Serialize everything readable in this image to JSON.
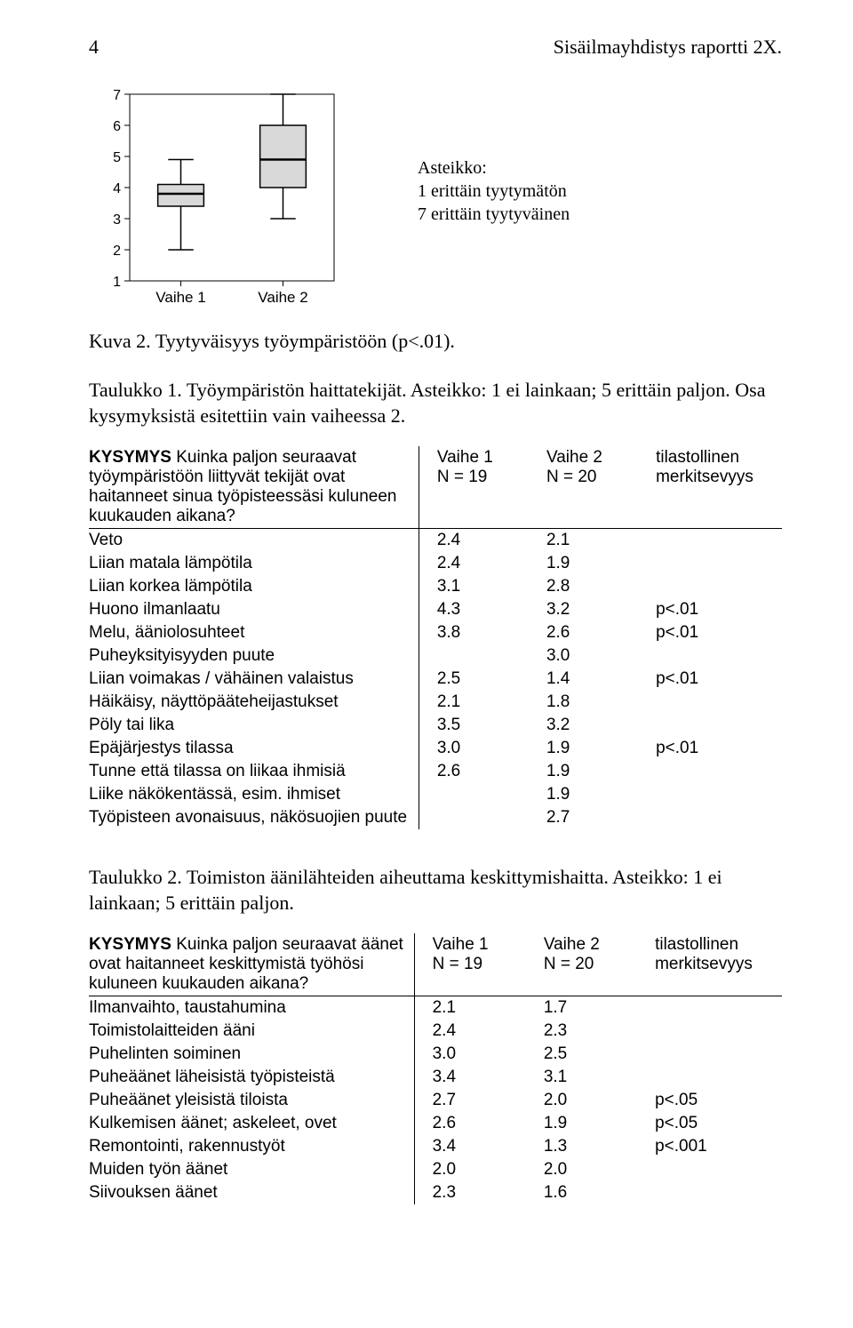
{
  "header": {
    "page_number": "4",
    "report_title": "Sisäilmayhdistys raportti 2X."
  },
  "boxplot": {
    "axis_ticks": [
      "1",
      "2",
      "3",
      "4",
      "5",
      "6",
      "7"
    ],
    "categories": [
      "Vaihe 1",
      "Vaihe 2"
    ],
    "legend_title": "Asteikko:",
    "legend_line1": "1 erittäin tyytymätön",
    "legend_line2": "7 erittäin tyytyväinen",
    "box_fill": "#d9d9d9",
    "box_stroke": "#000000",
    "line_stroke": "#000000",
    "background": "#ffffff",
    "ylim": [
      1,
      7
    ],
    "boxes": [
      {
        "whisker_low": 2,
        "q1": 3.4,
        "median": 3.8,
        "q3": 4.1,
        "whisker_high": 4.9
      },
      {
        "whisker_low": 3,
        "q1": 4.0,
        "median": 4.9,
        "q3": 6.0,
        "whisker_high": 7
      }
    ]
  },
  "fig_caption": "Kuva 2. Tyytyväisyys työympäristöön (p<.01).",
  "table1": {
    "intro": "Taulukko 1. Työympäristön haittatekijät. Asteikko: 1 ei lainkaan; 5 erittäin paljon. Osa kysymyksistä esitettiin vain vaiheessa 2.",
    "question_lead": "KYSYMYS",
    "question_text": " Kuinka paljon seuraavat työympäristöön liittyvät tekijät ovat haitanneet sinua työpisteessäsi kuluneen kuukauden aikana?",
    "header": {
      "v1_top": "Vaihe 1",
      "v1_bot": "N = 19",
      "v2_top": "Vaihe 2",
      "v2_bot": "N = 20",
      "sig_top": "tilastollinen",
      "sig_bot": "merkitsevyys"
    },
    "rows": [
      {
        "label": "Veto",
        "v1": "2.4",
        "v2": "2.1",
        "sig": ""
      },
      {
        "label": "Liian matala lämpötila",
        "v1": "2.4",
        "v2": "1.9",
        "sig": ""
      },
      {
        "label": "Liian korkea lämpötila",
        "v1": "3.1",
        "v2": "2.8",
        "sig": ""
      },
      {
        "label": "Huono ilmanlaatu",
        "v1": "4.3",
        "v2": "3.2",
        "sig": "p<.01"
      },
      {
        "label": "Melu, ääniolosuhteet",
        "v1": "3.8",
        "v2": "2.6",
        "sig": "p<.01"
      },
      {
        "label": "Puheyksityisyyden puute",
        "v1": "",
        "v2": "3.0",
        "sig": ""
      },
      {
        "label": "Liian voimakas / vähäinen valaistus",
        "v1": "2.5",
        "v2": "1.4",
        "sig": "p<.01"
      },
      {
        "label": "Häikäisy, näyttöpääteheijastukset",
        "v1": "2.1",
        "v2": "1.8",
        "sig": ""
      },
      {
        "label": "Pöly tai lika",
        "v1": "3.5",
        "v2": "3.2",
        "sig": ""
      },
      {
        "label": "Epäjärjestys tilassa",
        "v1": "3.0",
        "v2": "1.9",
        "sig": "p<.01"
      },
      {
        "label": "Tunne että tilassa on liikaa ihmisiä",
        "v1": "2.6",
        "v2": "1.9",
        "sig": ""
      },
      {
        "label": "Liike näkökentässä, esim. ihmiset",
        "v1": "",
        "v2": "1.9",
        "sig": ""
      },
      {
        "label": "Työpisteen avonaisuus, näkösuojien puute",
        "v1": "",
        "v2": "2.7",
        "sig": ""
      }
    ]
  },
  "table2": {
    "intro": "Taulukko 2. Toimiston äänilähteiden aiheuttama keskittymishaitta. Asteikko: 1 ei lainkaan; 5 erittäin paljon.",
    "question_lead": "KYSYMYS",
    "question_text": " Kuinka paljon seuraavat äänet ovat haitanneet keskittymistä työhösi kuluneen kuukauden aikana?",
    "header": {
      "v1_top": "Vaihe 1",
      "v1_bot": "N = 19",
      "v2_top": "Vaihe 2",
      "v2_bot": "N = 20",
      "sig_top": "tilastollinen",
      "sig_bot": "merkitsevyys"
    },
    "rows": [
      {
        "label": "Ilmanvaihto, taustahumina",
        "v1": "2.1",
        "v2": "1.7",
        "sig": ""
      },
      {
        "label": "Toimistolaitteiden ääni",
        "v1": "2.4",
        "v2": "2.3",
        "sig": ""
      },
      {
        "label": "Puhelinten soiminen",
        "v1": "3.0",
        "v2": "2.5",
        "sig": ""
      },
      {
        "label": "Puheäänet läheisistä työpisteistä",
        "v1": "3.4",
        "v2": "3.1",
        "sig": ""
      },
      {
        "label": "Puheäänet yleisistä tiloista",
        "v1": "2.7",
        "v2": "2.0",
        "sig": "p<.05"
      },
      {
        "label": "Kulkemisen äänet; askeleet, ovet",
        "v1": "2.6",
        "v2": "1.9",
        "sig": "p<.05"
      },
      {
        "label": "Remontointi, rakennustyöt",
        "v1": "3.4",
        "v2": "1.3",
        "sig": "p<.001"
      },
      {
        "label": "Muiden työn äänet",
        "v1": "2.0",
        "v2": "2.0",
        "sig": ""
      },
      {
        "label": "Siivouksen äänet",
        "v1": "2.3",
        "v2": "1.6",
        "sig": ""
      }
    ]
  }
}
